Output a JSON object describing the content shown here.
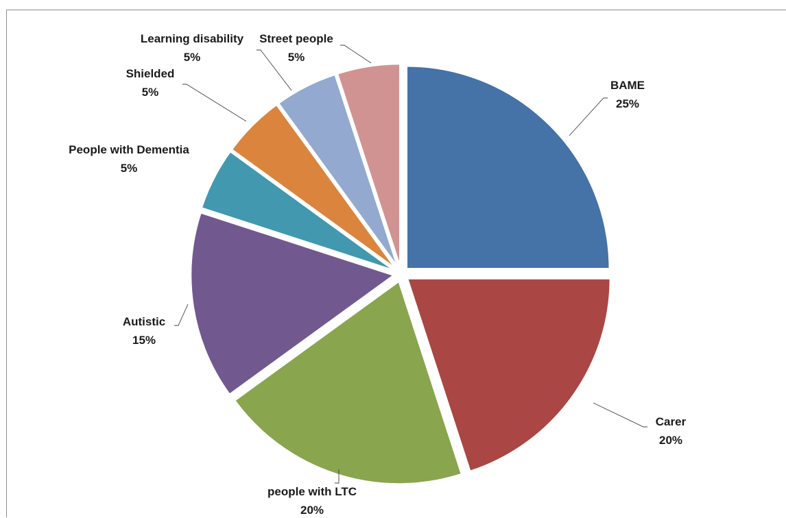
{
  "chart_data": {
    "type": "pie",
    "title": "",
    "slices": [
      {
        "label": "BAME",
        "value": 25,
        "display": "25%",
        "color": "#4572A7"
      },
      {
        "label": "Carer",
        "value": 20,
        "display": "20%",
        "color": "#AA4643"
      },
      {
        "label": "people with LTC",
        "value": 20,
        "display": "20%",
        "color": "#89A54E"
      },
      {
        "label": "Autistic",
        "value": 15,
        "display": "15%",
        "color": "#71588F"
      },
      {
        "label": "People with Dementia",
        "value": 5,
        "display": "5%",
        "color": "#4198AF"
      },
      {
        "label": "Shielded",
        "value": 5,
        "display": "5%",
        "color": "#DB843D"
      },
      {
        "label": "Learning disability",
        "value": 5,
        "display": "5%",
        "color": "#93A9CF"
      },
      {
        "label": "Street people",
        "value": 5,
        "display": "5%",
        "color": "#D19392"
      }
    ],
    "exploded": true,
    "start_angle": "12 o'clock",
    "direction": "clockwise",
    "labels": "outside with leader lines",
    "legend": "none"
  }
}
